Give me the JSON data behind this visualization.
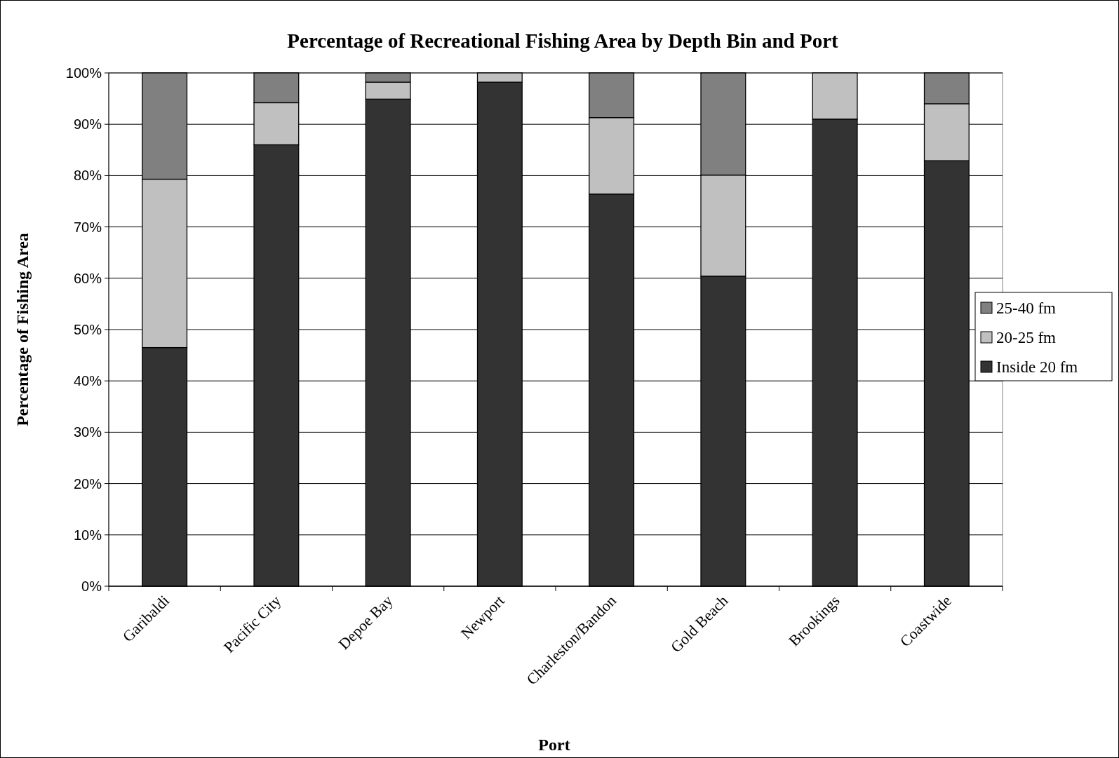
{
  "chart_data": {
    "type": "bar",
    "title": "Percentage of Recreational Fishing Area by Depth Bin and Port",
    "xlabel": "Port",
    "ylabel": "Percentage of Fishing Area",
    "categories": [
      "Garibaldi",
      "Pacific City",
      "Depoe Bay",
      "Newport",
      "Charleston/Bandon",
      "Gold Beach",
      "Brookings",
      "Coastwide"
    ],
    "stacked": true,
    "series": [
      {
        "name": "Inside 20 fm",
        "color": "#333333",
        "values": [
          46.5,
          86.0,
          94.9,
          98.2,
          76.4,
          60.4,
          91.0,
          82.9
        ]
      },
      {
        "name": "20-25 fm",
        "color": "#c0c0c0",
        "values": [
          32.8,
          8.2,
          3.3,
          1.8,
          14.9,
          19.7,
          9.0,
          11.1
        ]
      },
      {
        "name": "25-40 fm",
        "color": "#808080",
        "values": [
          20.7,
          5.8,
          1.8,
          0,
          8.7,
          19.9,
          0,
          6.0
        ]
      }
    ],
    "ylim": [
      0,
      100
    ],
    "yticks": [
      {
        "value": 0,
        "label": "0%"
      },
      {
        "value": 10,
        "label": "10%"
      },
      {
        "value": 20,
        "label": "20%"
      },
      {
        "value": 30,
        "label": "30%"
      },
      {
        "value": 40,
        "label": "40%"
      },
      {
        "value": 50,
        "label": "50%"
      },
      {
        "value": 60,
        "label": "60%"
      },
      {
        "value": 70,
        "label": "70%"
      },
      {
        "value": 80,
        "label": "80%"
      },
      {
        "value": 90,
        "label": "90%"
      },
      {
        "value": 100,
        "label": "100%"
      }
    ],
    "grid": "y",
    "legend": "right"
  }
}
